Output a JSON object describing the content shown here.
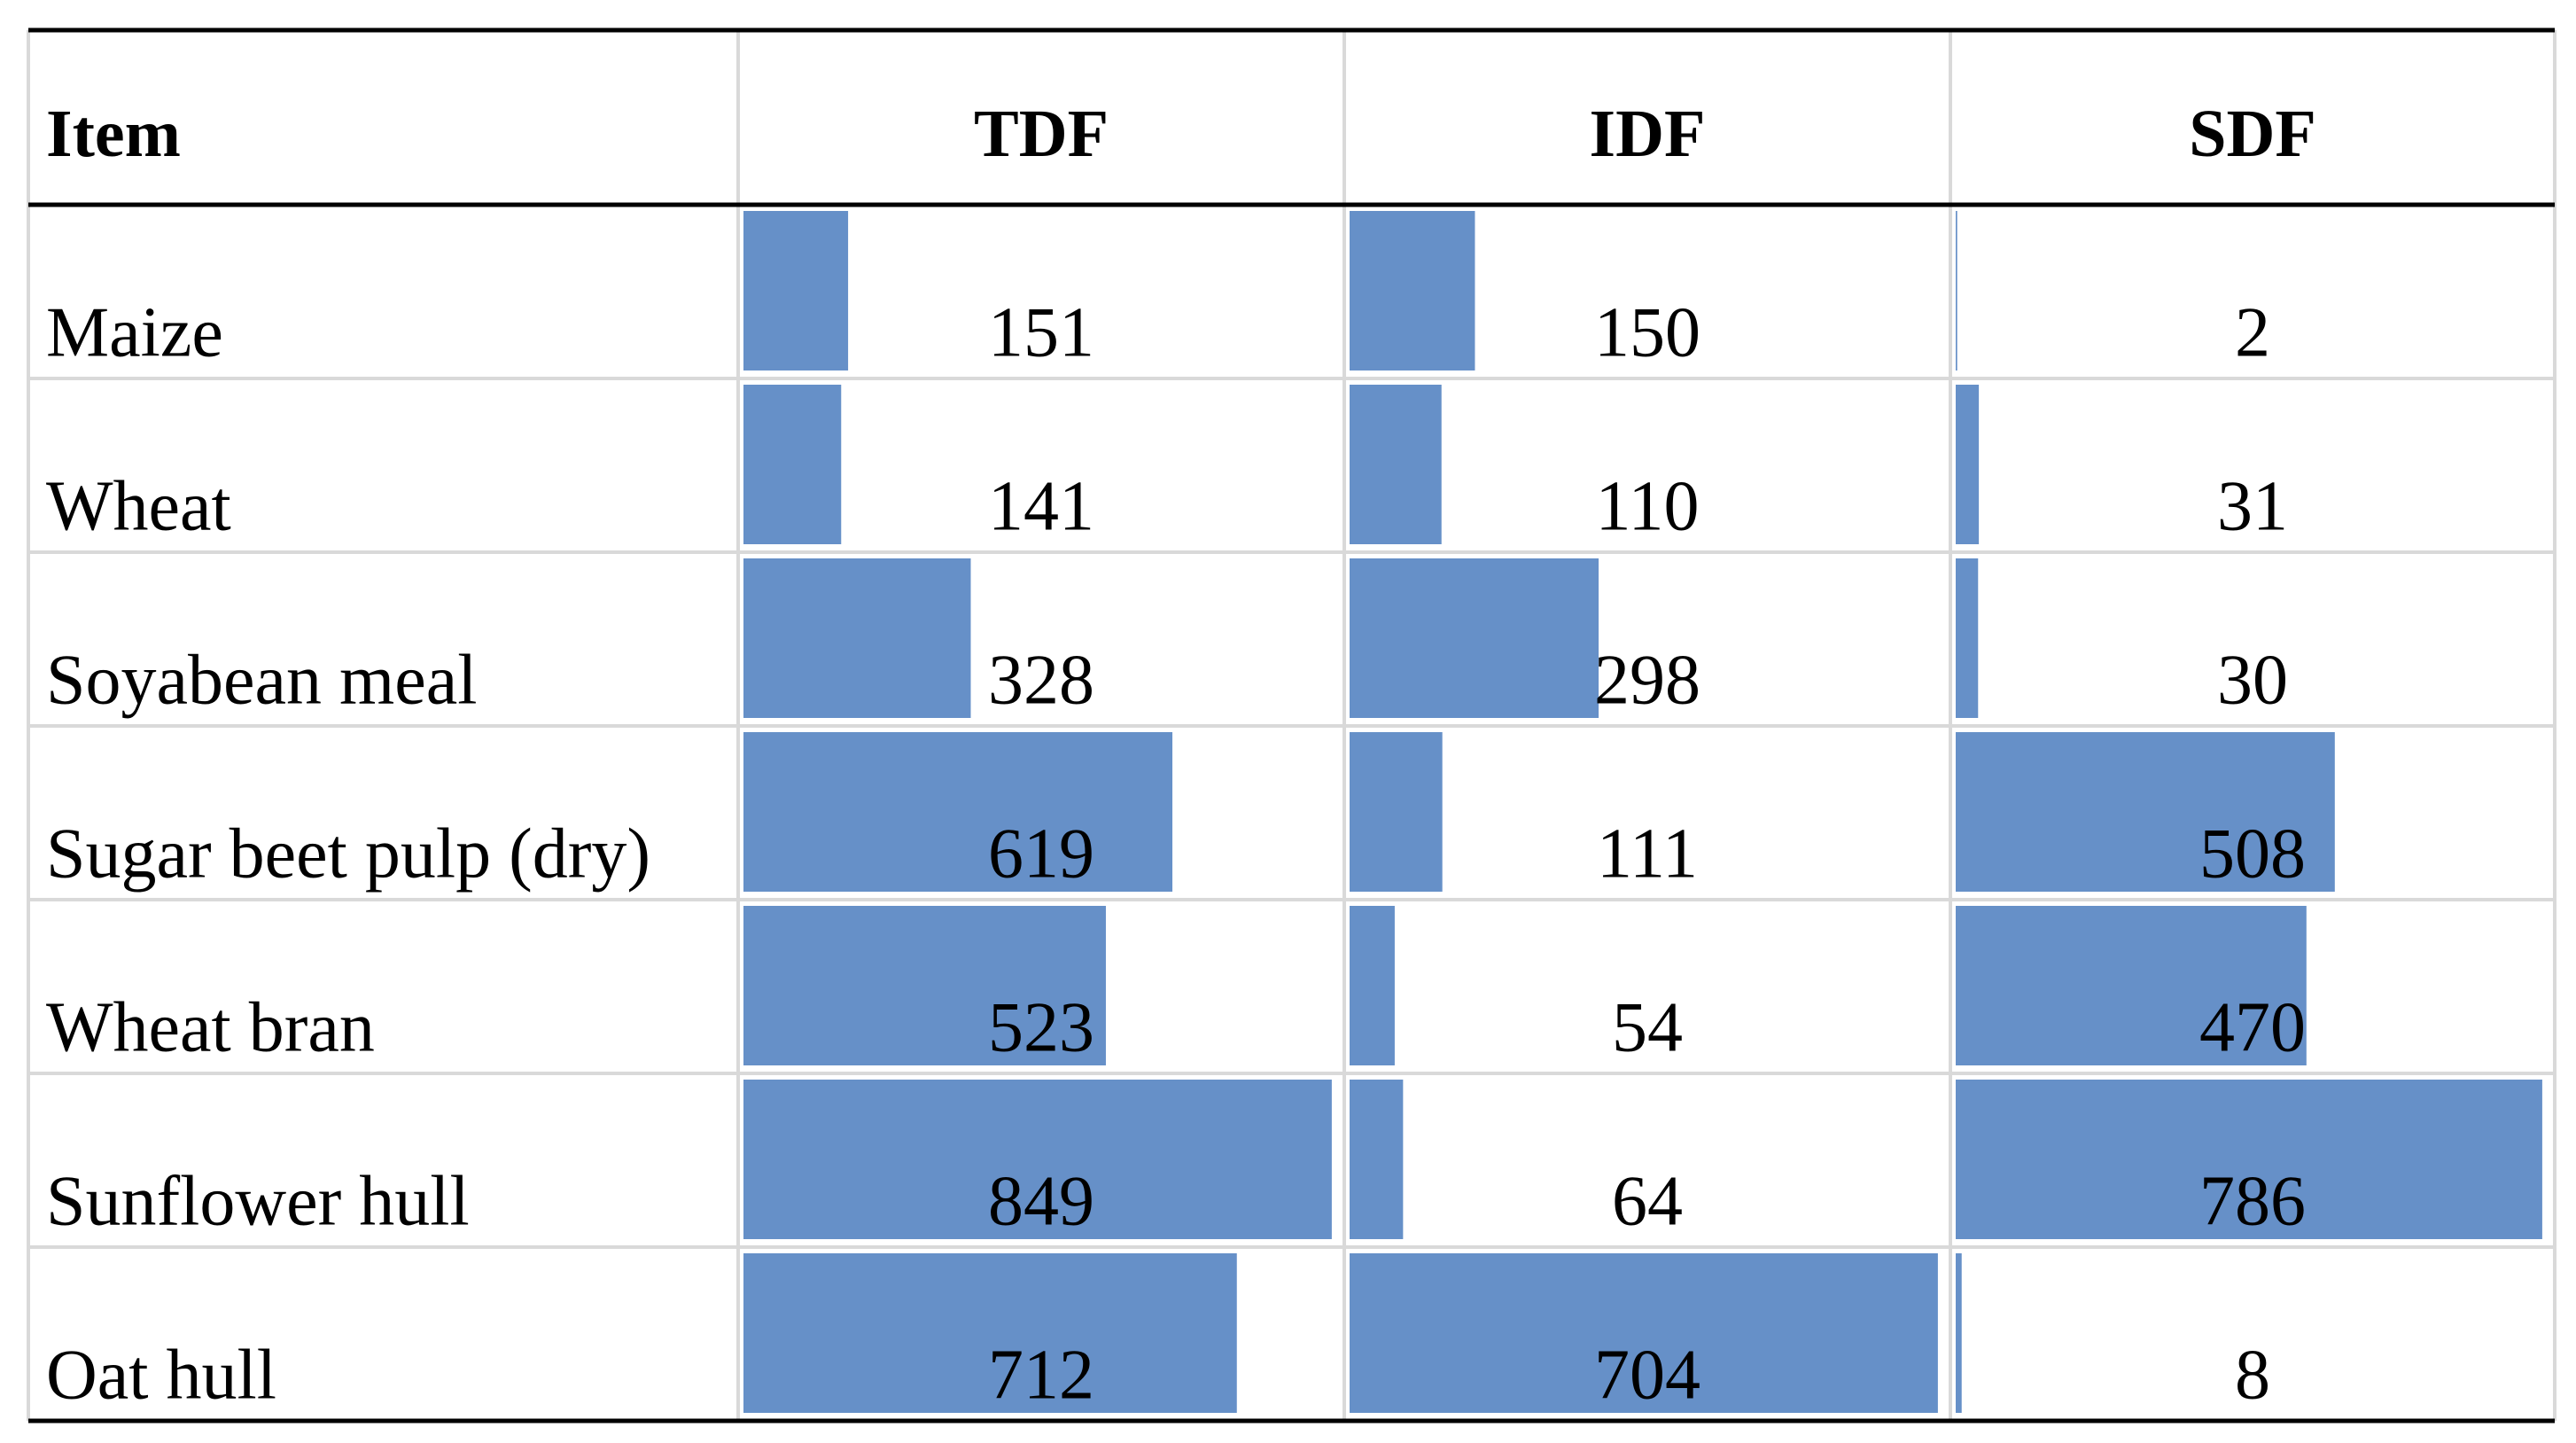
{
  "table": {
    "columns": [
      "Item",
      "TDF",
      "IDF",
      "SDF"
    ],
    "rows": [
      [
        "Maize",
        151,
        150,
        2
      ],
      [
        "Wheat",
        141,
        110,
        31
      ],
      [
        "Soyabean meal",
        328,
        298,
        30
      ],
      [
        "Sugar beet pulp (dry)",
        619,
        111,
        508
      ],
      [
        "Wheat bran",
        523,
        54,
        470
      ],
      [
        "Sunflower hull",
        849,
        64,
        786
      ],
      [
        "Oat hull",
        712,
        704,
        8
      ]
    ],
    "bar_color": "#6690c8"
  }
}
